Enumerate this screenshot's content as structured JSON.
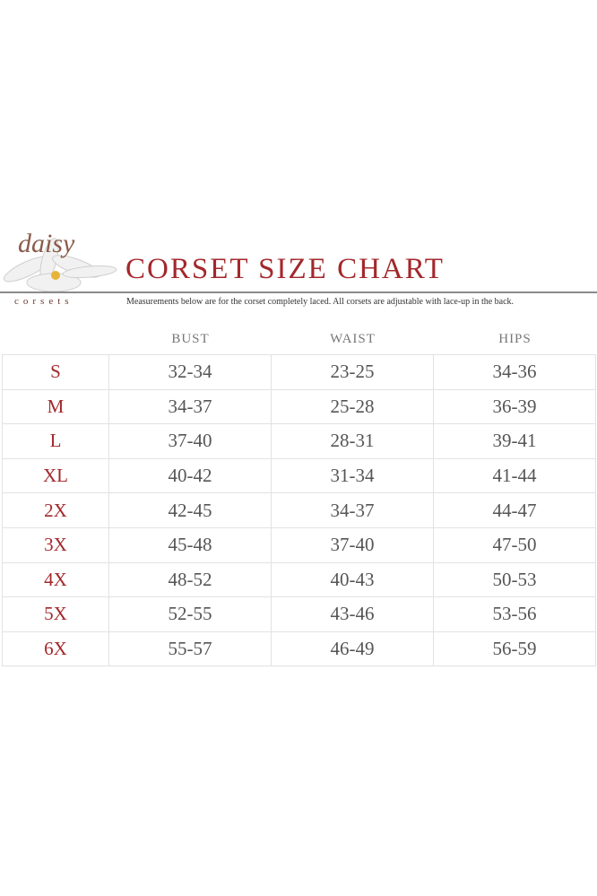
{
  "brand": {
    "script": "daisy",
    "word": "corsets"
  },
  "title": "CORSET SIZE CHART",
  "subtitle": "Measurements below are for the corset completely laced.  All corsets are adjustable with lace-up in the back.",
  "colors": {
    "accent": "#a3282c",
    "text": "#555555"
  },
  "headers": [
    "BUST",
    "WAIST",
    "HIPS"
  ],
  "rows": [
    {
      "size": "S",
      "bust": "32-34",
      "waist": "23-25",
      "hips": "34-36"
    },
    {
      "size": "M",
      "bust": "34-37",
      "waist": "25-28",
      "hips": "36-39"
    },
    {
      "size": "L",
      "bust": "37-40",
      "waist": "28-31",
      "hips": "39-41"
    },
    {
      "size": "XL",
      "bust": "40-42",
      "waist": "31-34",
      "hips": "41-44"
    },
    {
      "size": "2X",
      "bust": "42-45",
      "waist": "34-37",
      "hips": "44-47"
    },
    {
      "size": "3X",
      "bust": "45-48",
      "waist": "37-40",
      "hips": "47-50"
    },
    {
      "size": "4X",
      "bust": "48-52",
      "waist": "40-43",
      "hips": "50-53"
    },
    {
      "size": "5X",
      "bust": "52-55",
      "waist": "43-46",
      "hips": "53-56"
    },
    {
      "size": "6X",
      "bust": "55-57",
      "waist": "46-49",
      "hips": "56-59"
    }
  ]
}
